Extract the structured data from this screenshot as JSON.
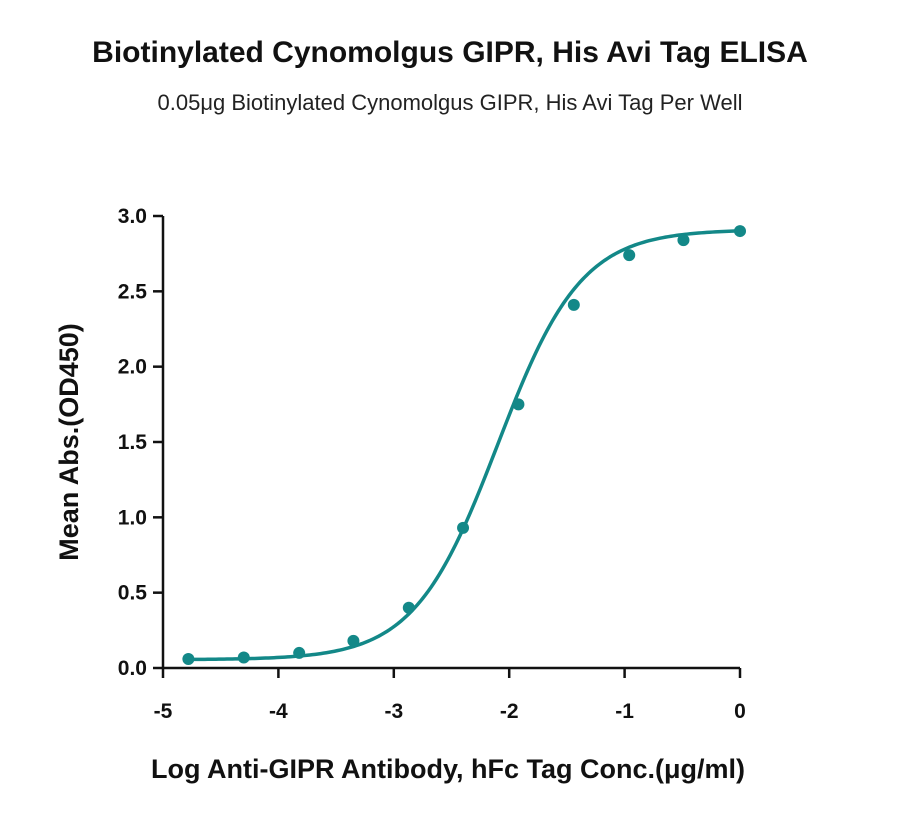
{
  "chart_data": {
    "type": "scatter",
    "title": "Biotinylated Cynomolgus GIPR, His Avi Tag ELISA",
    "subtitle": "0.05μg Biotinylated Cynomolgus GIPR, His Avi Tag Per Well",
    "xlabel": "Log Anti-GIPR Antibody, hFc Tag Conc.(μg/ml)",
    "ylabel": "Mean Abs.(OD450)",
    "xlim": [
      -5,
      0
    ],
    "ylim": [
      0,
      3.0
    ],
    "xticks": [
      -5,
      -4,
      -3,
      -2,
      -1,
      0
    ],
    "xtick_labels": [
      "-5",
      "-4",
      "-3",
      "-2",
      "-1",
      "0"
    ],
    "yticks": [
      0,
      0.5,
      1.0,
      1.5,
      2.0,
      2.5,
      3.0
    ],
    "ytick_labels": [
      "0.0",
      "0.5",
      "1.0",
      "1.5",
      "2.0",
      "2.5",
      "3.0"
    ],
    "grid": false,
    "legend": "none",
    "series": [
      {
        "color": "#138888",
        "x": [
          -4.78,
          -4.3,
          -3.82,
          -3.35,
          -2.87,
          -2.4,
          -1.92,
          -1.44,
          -0.96,
          -0.49,
          0.0
        ],
        "y": [
          0.06,
          0.07,
          0.1,
          0.18,
          0.4,
          0.93,
          1.75,
          2.41,
          2.74,
          2.84,
          2.9
        ]
      }
    ],
    "fit_curve": {
      "model": "4PL",
      "bottom": 0.055,
      "top": 2.91,
      "log_ec50": -2.1,
      "hill": 1.2,
      "color": "#138888"
    }
  }
}
